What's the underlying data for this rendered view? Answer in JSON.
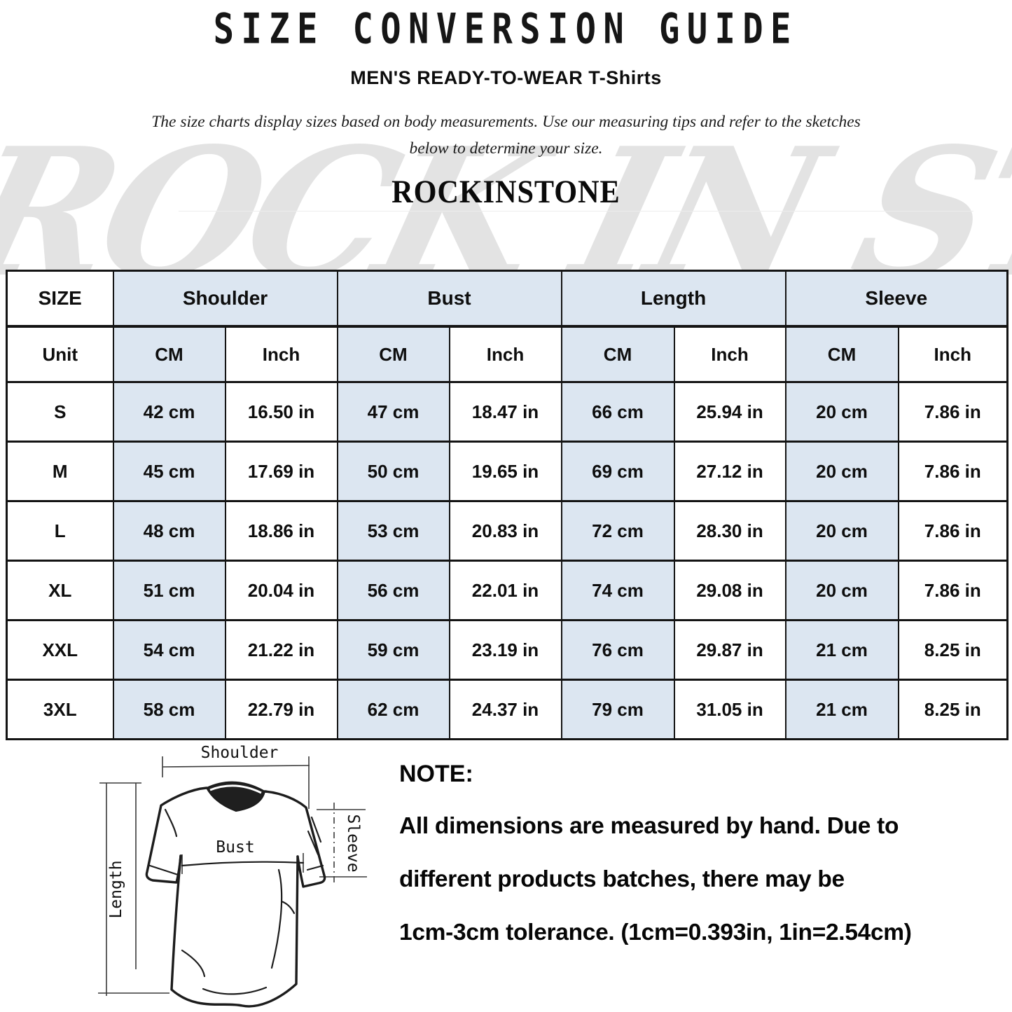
{
  "header": {
    "title": "SIZE CONVERSION GUIDE",
    "subtitle": "MEN'S READY-TO-WEAR T-Shirts",
    "description_line1": "The size charts display sizes based on body measurements. Use our measuring tips and refer to the sketches",
    "description_line2": "below to determine your size.",
    "brand": "ROCKINSTONE",
    "watermark": "ROCK IN STONE"
  },
  "table": {
    "col_groups": [
      "SIZE",
      "Shoulder",
      "Bust",
      "Length",
      "Sleeve"
    ],
    "unit_row": [
      "Unit",
      "CM",
      "Inch",
      "CM",
      "Inch",
      "CM",
      "Inch",
      "CM",
      "Inch"
    ],
    "rows": [
      {
        "size": "S",
        "values": [
          "42 cm",
          "16.50 in",
          "47 cm",
          "18.47 in",
          "66 cm",
          "25.94 in",
          "20 cm",
          "7.86 in"
        ]
      },
      {
        "size": "M",
        "values": [
          "45 cm",
          "17.69 in",
          "50 cm",
          "19.65 in",
          "69 cm",
          "27.12 in",
          "20 cm",
          "7.86 in"
        ]
      },
      {
        "size": "L",
        "values": [
          "48 cm",
          "18.86 in",
          "53 cm",
          "20.83 in",
          "72 cm",
          "28.30 in",
          "20 cm",
          "7.86 in"
        ]
      },
      {
        "size": "XL",
        "values": [
          "51 cm",
          "20.04 in",
          "56 cm",
          "22.01 in",
          "74 cm",
          "29.08 in",
          "20 cm",
          "7.86 in"
        ]
      },
      {
        "size": "XXL",
        "values": [
          "54 cm",
          "21.22 in",
          "59 cm",
          "23.19 in",
          "76 cm",
          "29.87 in",
          "21 cm",
          "8.25 in"
        ]
      },
      {
        "size": "3XL",
        "values": [
          "58 cm",
          "22.79 in",
          "62 cm",
          "24.37 in",
          "79 cm",
          "31.05 in",
          "21 cm",
          "8.25 in"
        ]
      }
    ]
  },
  "diagram": {
    "labels": {
      "shoulder": "Shoulder",
      "bust": "Bust",
      "sleeve": "Sleeve",
      "length": "Length"
    }
  },
  "note": {
    "title": "NOTE:",
    "lines": [
      "All dimensions are measured by hand. Due to",
      "different products batches, there may be",
      "1cm-3cm tolerance. (1cm=0.393in, 1in=2.54cm)"
    ]
  },
  "colors": {
    "highlight": "#dce6f1",
    "border": "#141414",
    "watermark": "#e3e3e3"
  }
}
